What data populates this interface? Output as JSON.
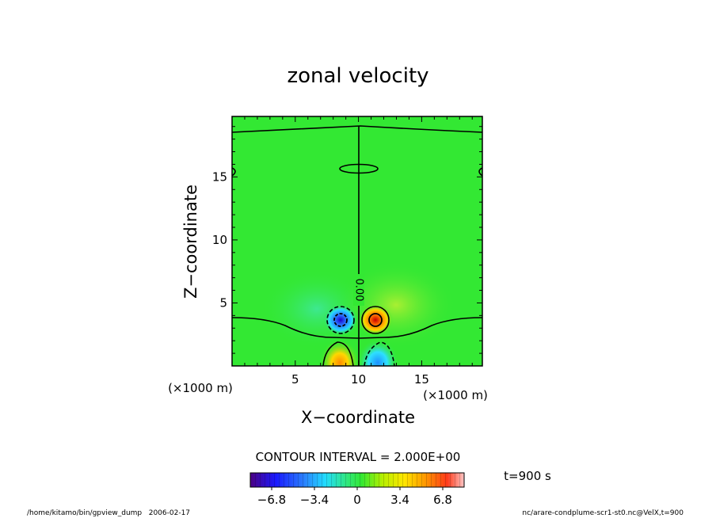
{
  "chart_data": {
    "type": "heatmap",
    "title": "zonal velocity",
    "xlabel": "X−coordinate",
    "ylabel": "Z−coordinate",
    "x_unit": "(×1000 m)",
    "y_unit": "(×1000 m)",
    "xlim": [
      0,
      19.8
    ],
    "ylim": [
      0,
      19.8
    ],
    "x_ticks": [
      "5",
      "10",
      "15"
    ],
    "x_tick_values": [
      5,
      10,
      15
    ],
    "y_ticks": [
      "5",
      "10",
      "15"
    ],
    "y_tick_values": [
      5,
      10,
      15
    ],
    "contour_label": "0.00",
    "contour_interval": "CONTOUR INTERVAL = 2.000E+00",
    "colorbar": {
      "min": -8.5,
      "max": 8.5,
      "ticks": [
        "−6.8",
        "−3.4",
        "0",
        "3.4",
        "6.8"
      ],
      "tick_values": [
        -6.8,
        -3.4,
        0,
        3.4,
        6.8
      ]
    },
    "time_label": "t=900 s",
    "features": [
      {
        "name": "negative core",
        "x": 8.6,
        "z": 3.5,
        "value": -6.8
      },
      {
        "name": "positive core",
        "x": 11.4,
        "z": 3.5,
        "value": 6.8
      },
      {
        "name": "positive lower",
        "x": 8.5,
        "z": 0.8,
        "value": 4.5
      },
      {
        "name": "negative lower",
        "x": 11.5,
        "z": 0.8,
        "value": -4.5
      }
    ],
    "grid": false,
    "legend": "bottom-center colorbar"
  },
  "footer": {
    "left": "/home/kitamo/bin/gpview_dump   2006-02-17",
    "right": "nc/arare-condplume-scr1-st0.nc@VelX,t=900"
  },
  "colors": {
    "background_field": "#33e833",
    "negative": "#0044ff",
    "positive": "#ff5a00"
  }
}
